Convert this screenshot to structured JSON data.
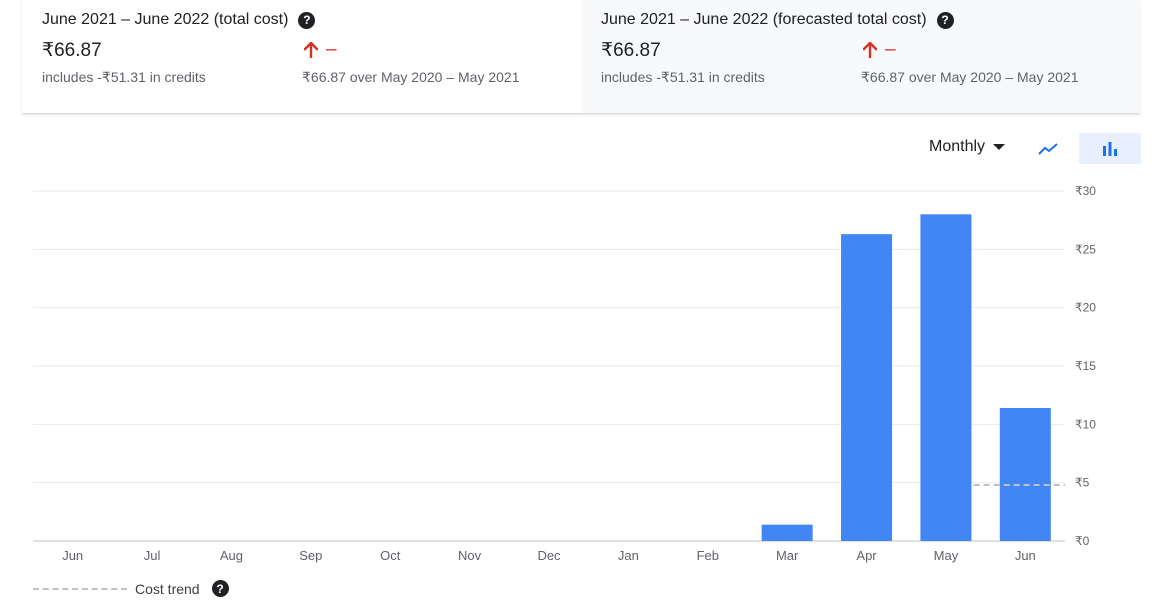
{
  "summary": {
    "total": {
      "title": "June 2021 – June 2022 (total cost)",
      "amount": "₹66.87",
      "credits": "includes -₹51.31 in credits",
      "trend_value": "–",
      "comparison": "₹66.87 over May 2020 – May 2021"
    },
    "forecast": {
      "title": "June 2021 – June 2022 (forecasted total cost)",
      "amount": "₹66.87",
      "credits": "includes -₹51.31 in credits",
      "trend_value": "–",
      "comparison": "₹66.87 over May 2020 – May 2021"
    },
    "help_glyph": "?",
    "trend_icon": "arrow-up-icon",
    "trend_color": "#d93025"
  },
  "controls": {
    "period": "Monthly",
    "line_icon": "line-chart-icon",
    "bar_icon": "bar-chart-icon",
    "active_view": "bar"
  },
  "legend": {
    "label": "Cost trend"
  },
  "colors": {
    "bar": "#4285f4",
    "trend": "#bdc1c6",
    "grid": "#e8eaed",
    "accent": "#1a73e8"
  },
  "chart_data": {
    "type": "bar",
    "categories": [
      "Jun",
      "Jul",
      "Aug",
      "Sep",
      "Oct",
      "Nov",
      "Dec",
      "Jan",
      "Feb",
      "Mar",
      "Apr",
      "May",
      "Jun"
    ],
    "values": [
      0,
      0,
      0,
      0,
      0,
      0,
      0,
      0,
      0,
      1.4,
      26.3,
      28.0,
      11.4
    ],
    "y_ticks": [
      0,
      5,
      10,
      15,
      20,
      25,
      30
    ],
    "y_tick_labels": [
      "₹0",
      "₹5",
      "₹10",
      "₹15",
      "₹20",
      "₹25",
      "₹30"
    ],
    "ylim": [
      0,
      30
    ],
    "y_axis_side": "right",
    "grid": true,
    "trend": {
      "name": "Cost trend",
      "from_category": 12,
      "value": 4.8
    },
    "legend_placement": "bottom-left"
  }
}
